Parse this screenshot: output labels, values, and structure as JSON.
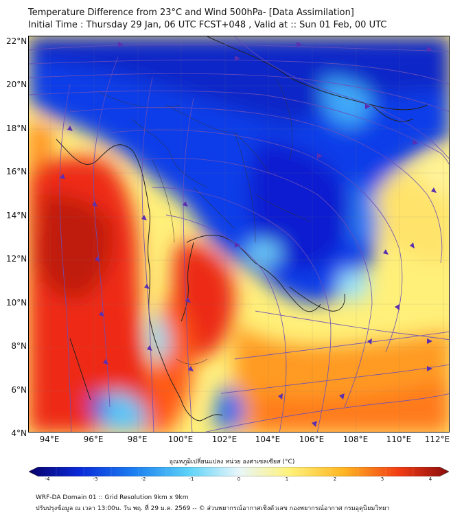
{
  "title": {
    "line1": "Temperature Difference from 23°C and Wind 500hPa- [Data Assimilation]",
    "line2": "Initial Time : Thursday 29 Jan, 06 UTC FCST+048 , Valid at :: Sun 01 Feb, 00 UTC"
  },
  "axes": {
    "lat": [
      "22°N",
      "20°N",
      "18°N",
      "16°N",
      "14°N",
      "12°N",
      "10°N",
      "8°N",
      "6°N",
      "4°N"
    ],
    "lon": [
      "94°E",
      "96°E",
      "98°E",
      "100°E",
      "102°E",
      "104°E",
      "106°E",
      "108°E",
      "110°E",
      "112°E"
    ]
  },
  "colorbar": {
    "title": "อุณหภูมิเปลี่ยนแปลง หน่วย องศาเซลเซียส (°C)",
    "ticks": [
      "-4",
      "-3",
      "-2",
      "-1",
      "0",
      "1",
      "2",
      "3",
      "4"
    ],
    "colors": [
      "#08006a",
      "#0a2ad8",
      "#1b7ef0",
      "#5cd2f8",
      "#e8f6fa",
      "#fff27a",
      "#ffb522",
      "#f23d14",
      "#8a0c0c"
    ]
  },
  "footer": {
    "line1": "WRF-DA Domain 01 :: Grid Resolution 9km x 9km",
    "line2": "ปรับปรุงข้อมูล ณ เวลา 13:00น. วัน พฤ. ที่ 29 ม.ค. 2569 -- © ส่วนพยากรณ์อากาศเชิงตัวเลข กองพยากรณ์อากาศ กรมอุตุนิยมวิทยา"
  },
  "map": {
    "region_lat": [
      4,
      22
    ],
    "region_lon": [
      93,
      112.5
    ],
    "field": "temperature difference from 23°C",
    "overlay": "500hPa wind streamlines"
  }
}
